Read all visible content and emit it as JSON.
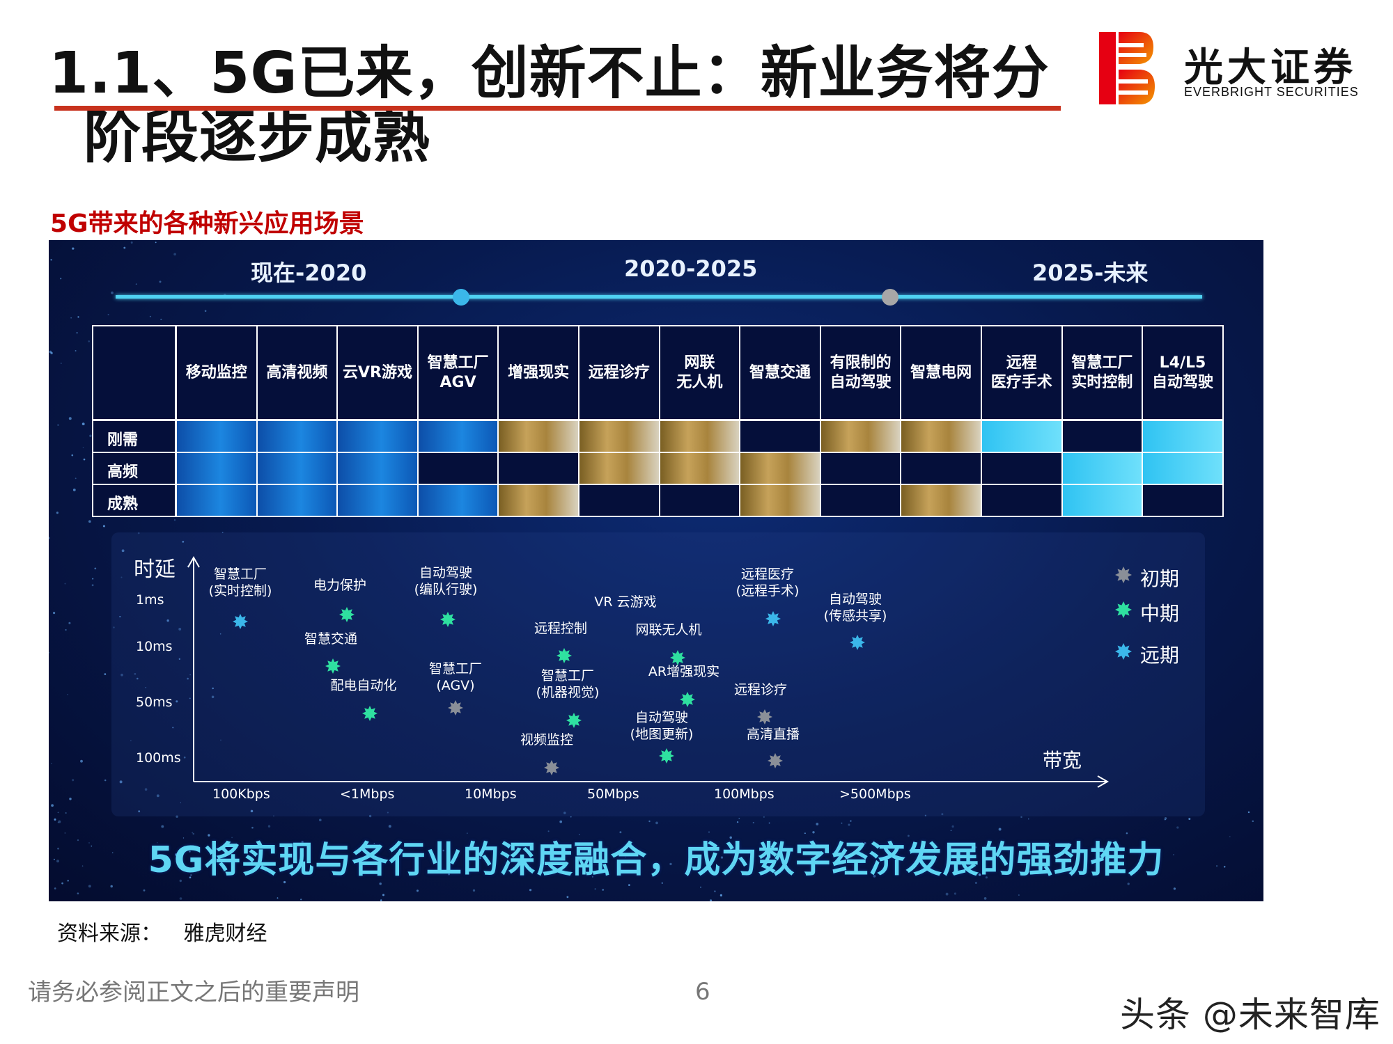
{
  "header": {
    "title_line1": "1.1、5G已来，创新不止：新业务将分",
    "title_line2": "阶段逐步成熟",
    "logo_cn": "光大证券",
    "logo_en": "EVERBRIGHT SECURITIES",
    "logo_colors": [
      "#e60012",
      "#f39800"
    ]
  },
  "subtitle": "5G带来的各种新兴应用场景",
  "panel": {
    "phases": [
      "现在-2020",
      "2020-2025",
      "2025-未来"
    ],
    "timeline_dot_colors": [
      "#3bb7ea",
      "#a7a7a7"
    ],
    "table": {
      "columns": [
        "移动监控",
        "高清视频",
        "云VR游戏",
        "智慧工厂\nAGV",
        "增强现实",
        "远程诊疗",
        "网联\n无人机",
        "智慧交通",
        "有限制的\n自动驾驶",
        "智慧电网",
        "远程\n医疗手术",
        "智慧工厂\n实时控制",
        "L4/L5\n自动驾驶"
      ],
      "rows": [
        {
          "label": "刚需",
          "fills": [
            "blue",
            "blue",
            "blue",
            "blue",
            "gold",
            "gold",
            "gold",
            "none",
            "gold",
            "gold",
            "cyan",
            "none",
            "cyan"
          ]
        },
        {
          "label": "高频",
          "fills": [
            "blue",
            "blue",
            "blue",
            "none",
            "none",
            "gold",
            "gold",
            "gold",
            "none",
            "none",
            "none",
            "cyan",
            "cyan"
          ]
        },
        {
          "label": "成熟",
          "fills": [
            "blue",
            "blue",
            "blue",
            "blue",
            "gold",
            "none",
            "none",
            "gold",
            "none",
            "gold",
            "none",
            "cyan",
            "none"
          ]
        }
      ]
    },
    "chart_data": {
      "type": "scatter",
      "xlabel": "带宽",
      "ylabel": "时延",
      "x_ticks": [
        "100Kbps",
        "<1Mbps",
        "10Mbps",
        "50Mbps",
        "100Mbps",
        ">500Mbps"
      ],
      "y_ticks": [
        "1ms",
        "10ms",
        "50ms",
        "100ms"
      ],
      "legend": [
        {
          "name": "初期",
          "color": "#8a8f98"
        },
        {
          "name": "中期",
          "color": "#2fe0a0"
        },
        {
          "name": "远期",
          "color": "#3bb7ea"
        }
      ],
      "points": [
        {
          "label": "智慧工厂\n(实时控制)",
          "x": "100Kbps",
          "y": "1ms",
          "stage": "远期"
        },
        {
          "label": "电力保护",
          "x": "<1Mbps",
          "y": "1ms",
          "stage": "中期"
        },
        {
          "label": "智慧交通",
          "x": "<1Mbps",
          "y": "10ms",
          "stage": "中期"
        },
        {
          "label": "配电自动化",
          "x": "<1Mbps",
          "y": "50ms",
          "stage": "中期"
        },
        {
          "label": "自动驾驶\n(编队行驶)",
          "x": "10Mbps",
          "y": "1ms",
          "stage": "中期"
        },
        {
          "label": "智慧工厂\n(AGV)",
          "x": "10Mbps",
          "y": "50ms",
          "stage": "初期"
        },
        {
          "label": "VR 云游戏",
          "x": "50Mbps",
          "y": "1ms",
          "stage": "中期"
        },
        {
          "label": "远程控制",
          "x": "50Mbps",
          "y": "10ms",
          "stage": "中期"
        },
        {
          "label": "智慧工厂\n(机器视觉)",
          "x": "50Mbps",
          "y": "50ms",
          "stage": "中期"
        },
        {
          "label": "视频监控",
          "x": "50Mbps",
          "y": "100ms",
          "stage": "初期"
        },
        {
          "label": "网联无人机",
          "x": "100Mbps",
          "y": "10ms",
          "stage": "中期"
        },
        {
          "label": "AR增强现实",
          "x": "100Mbps",
          "y": "50ms",
          "stage": "中期"
        },
        {
          "label": "自动驾驶\n(地图更新)",
          "x": "100Mbps",
          "y": "100ms",
          "stage": "中期"
        },
        {
          "label": "远程医疗\n(远程手术)",
          "x": "100Mbps",
          "y": "1ms",
          "stage": "远期"
        },
        {
          "label": "远程诊疗",
          "x": "100Mbps",
          "y": "50ms",
          "stage": "初期"
        },
        {
          "label": "高清直播",
          "x": "100Mbps",
          "y": "100ms",
          "stage": "初期"
        },
        {
          "label": "自动驾驶\n(传感共享)",
          "x": ">500Mbps",
          "y": "1ms",
          "stage": "远期"
        }
      ]
    },
    "slogan": "5G将实现与各行业的深度融合，成为数字经济发展的强劲推力"
  },
  "source": {
    "label": "资料来源：",
    "value": "雅虎财经"
  },
  "footer": {
    "disclaimer": "请务必参阅正文之后的重要声明",
    "page_number": "6",
    "watermark": "头条 @未来智库"
  }
}
